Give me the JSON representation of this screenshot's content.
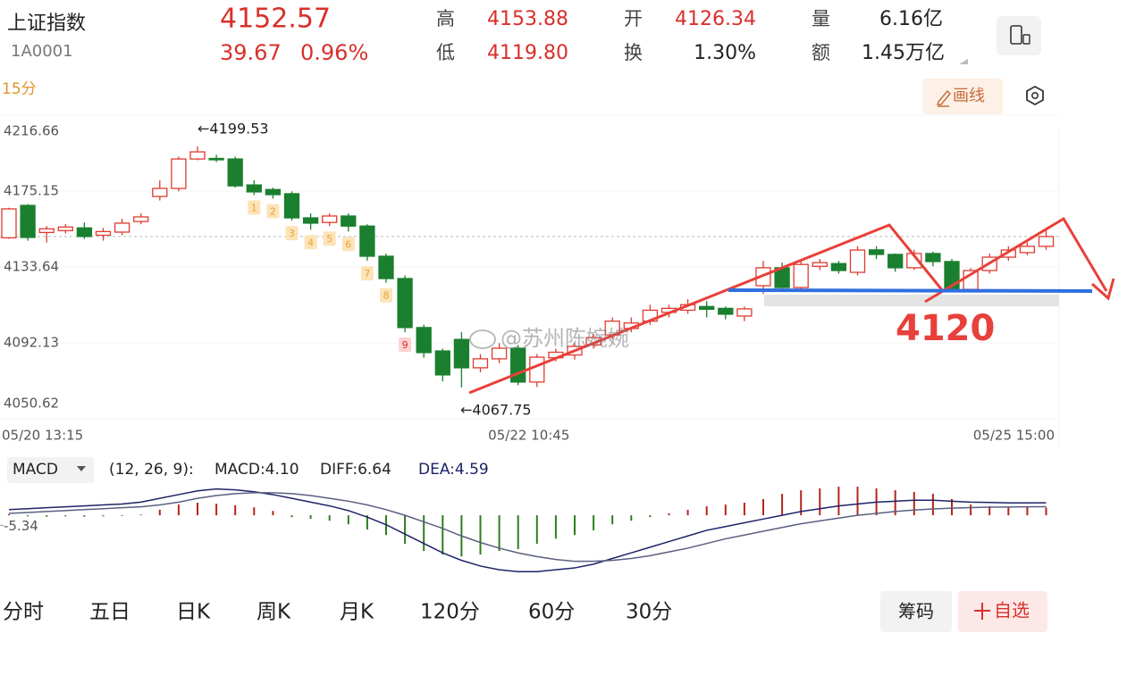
{
  "header": {
    "name": "上证指数",
    "code": "1A0001",
    "price": "4152.57",
    "change": "39.67",
    "change_pct": "0.96%",
    "stats": [
      [
        "高",
        "4153.88"
      ],
      [
        "低",
        "4119.80"
      ],
      [
        "开",
        "4126.34"
      ],
      [
        "换",
        "1.30%"
      ],
      [
        "量",
        "6.16亿"
      ],
      [
        "额",
        "1.45万亿"
      ]
    ]
  },
  "toolbar": {
    "period": "15分",
    "draw": "画线"
  },
  "annotations": {
    "high": "←4199.53",
    "low": "←4067.75",
    "level": "4120",
    "watermark": "@苏州陈婉婉"
  },
  "tabs": [
    "分时",
    "五日",
    "日K",
    "周K",
    "月K",
    "120分",
    "60分",
    "30分"
  ],
  "buttons": [
    "筹码",
    "自选"
  ],
  "chart_data": [
    {
      "type": "candlestick",
      "up_color": "#e03a2f",
      "down_color": "#1a7f2e",
      "categories": [
        "05/20 13:15",
        null,
        null,
        null,
        null,
        null,
        null,
        null,
        null,
        null,
        null,
        null,
        null,
        null,
        null,
        null,
        null,
        null,
        null,
        null,
        null,
        null,
        null,
        null,
        null,
        null,
        null,
        null,
        "05/22 10:45",
        null,
        null,
        null,
        null,
        null,
        null,
        null,
        null,
        null,
        null,
        null,
        null,
        null,
        null,
        null,
        null,
        null,
        null,
        null,
        null,
        null,
        null,
        null,
        null,
        null,
        null,
        "05/25 15:00"
      ],
      "open": [
        4149.6,
        4167.3,
        4152.5,
        4153.5,
        4155,
        4151,
        4152.7,
        4158.5,
        4172.2,
        4176.6,
        4192.7,
        4193,
        4192.7,
        4178.5,
        4176,
        4173.7,
        4160.5,
        4158,
        4161.5,
        4156,
        4139.5,
        4127.3,
        4100.5,
        4087.7,
        4094,
        4078.5,
        4083.4,
        4089.2,
        4070.7,
        4084,
        4085.5,
        4091,
        4096.5,
        4100,
        4104,
        4108.8,
        4110,
        4112,
        4111,
        4106.8,
        4123.4,
        4133.2,
        4122.4,
        4134,
        4135.5,
        4130.7,
        4143,
        4140.5,
        4133.2,
        4141,
        4136.6,
        4121.4,
        4131.7,
        4139,
        4141.5,
        4144.9
      ],
      "high": [
        4166,
        4168,
        4156,
        4157,
        4158,
        4155,
        4160,
        4163,
        4181,
        4194,
        4199.53,
        4195,
        4194,
        4181,
        4177,
        4175,
        4163,
        4163,
        4163,
        4157,
        4141,
        4129,
        4102,
        4089,
        4098,
        4086,
        4092,
        4091,
        4086,
        4089,
        4092,
        4097,
        4106,
        4106,
        4113,
        4113,
        4116,
        4115,
        4112,
        4112,
        4137,
        4136,
        4137,
        4138,
        4137,
        4145,
        4145,
        4141,
        4143,
        4142,
        4138,
        4133,
        4141,
        4145,
        4147,
        4153.88
      ],
      "low": [
        4149,
        4148,
        4147,
        4152,
        4149,
        4148,
        4151,
        4157,
        4170,
        4175,
        4192,
        4191,
        4177,
        4173,
        4171,
        4159,
        4154,
        4156,
        4153,
        4137,
        4125,
        4098,
        4084,
        4071,
        4067.75,
        4076,
        4081,
        4069,
        4068,
        4082,
        4083,
        4089,
        4094,
        4098,
        4102,
        4106,
        4108,
        4106,
        4105,
        4104,
        4119,
        4120,
        4120,
        4132,
        4130,
        4129,
        4138,
        4131,
        4132,
        4134,
        4119.8,
        4120,
        4130,
        4137,
        4140,
        4143
      ],
      "close": [
        4165.4,
        4149.8,
        4154.5,
        4155.5,
        4150.3,
        4153,
        4157.6,
        4161,
        4176.6,
        4192.7,
        4196.6,
        4192.5,
        4178,
        4174.7,
        4173.2,
        4160.5,
        4157.6,
        4161.5,
        4156,
        4139.5,
        4127.3,
        4100.5,
        4086.8,
        4074.6,
        4078.5,
        4083.4,
        4089.2,
        4070.7,
        4084.3,
        4087,
        4090.2,
        4095,
        4104,
        4103,
        4110,
        4111,
        4113,
        4110.5,
        4107.8,
        4110.7,
        4133.2,
        4122.4,
        4135,
        4136,
        4131.7,
        4142.9,
        4140.5,
        4133.2,
        4141,
        4136.6,
        4121.4,
        4131.7,
        4139,
        4142.9,
        4144.9,
        4150.3
      ],
      "ylim": [
        4050.62,
        4216.66
      ],
      "yticks": [
        4216.66,
        4175.15,
        4133.64,
        4092.13,
        4050.62
      ],
      "grid": true,
      "sequence_labels": [
        1,
        2,
        3,
        4,
        5,
        6,
        7,
        8,
        9
      ]
    },
    {
      "type": "macd",
      "indicator": "MACD",
      "params": "(12, 26, 9):",
      "legend": [
        "MACD:4.10",
        "DIFF:6.64",
        "DEA:4.59"
      ],
      "ylim": [
        -37,
        20
      ],
      "yticks": [
        -5.34
      ],
      "histogram": {
        "up_color": "#b5241c",
        "down_color": "#2e7d1e",
        "values": [
          0.6,
          -0.6,
          -0.8,
          -0.6,
          -0.8,
          -0.6,
          -0.4,
          0.4,
          2.9,
          5.7,
          6.7,
          6.1,
          5.3,
          4.2,
          2.3,
          -1,
          -1.9,
          -2.9,
          -4.8,
          -7.6,
          -10.5,
          -15.2,
          -19,
          -20.9,
          -21.9,
          -20.9,
          -19,
          -18,
          -15.2,
          -12.4,
          -10.5,
          -8,
          -4.8,
          -2.9,
          -1,
          1,
          2.9,
          4.8,
          5.7,
          6.7,
          8.6,
          11.4,
          13.3,
          14.3,
          15.2,
          15.2,
          14.3,
          13.3,
          12.4,
          11.4,
          8.6,
          5.7,
          4.8,
          4.2,
          4.8,
          4.1
        ]
      },
      "series": [
        {
          "color": "#1d2366",
          "values": [
            3,
            3.5,
            4,
            4.5,
            5,
            5.5,
            6,
            7,
            9,
            11,
            13,
            14,
            13.5,
            12.5,
            11,
            9,
            7,
            5,
            2.5,
            -1,
            -5,
            -10,
            -15,
            -20,
            -24,
            -27,
            -29,
            -30,
            -30,
            -29,
            -28,
            -26,
            -23,
            -20,
            -17,
            -14,
            -11,
            -8,
            -6,
            -4,
            -2,
            0,
            2,
            3.5,
            5,
            6,
            7,
            7.5,
            8,
            8,
            7.5,
            7,
            6.8,
            6.6,
            6.6,
            6.64
          ]
        },
        {
          "color": "#5a5f80",
          "values": [
            1,
            1.5,
            2,
            2.5,
            3,
            3.5,
            4,
            4.5,
            5.5,
            7,
            9,
            10.5,
            11.5,
            12,
            12,
            11.5,
            10.5,
            9,
            7.5,
            5.5,
            3,
            0,
            -3.5,
            -7,
            -11,
            -14.5,
            -17.5,
            -20,
            -22,
            -23.5,
            -24.5,
            -24.5,
            -24,
            -23,
            -21.5,
            -19.5,
            -17.5,
            -15,
            -12.5,
            -10.5,
            -8.5,
            -6.5,
            -4.5,
            -3,
            -1.5,
            0,
            1,
            2,
            2.8,
            3.4,
            3.8,
            4.1,
            4.3,
            4.4,
            4.5,
            4.59
          ]
        }
      ]
    }
  ]
}
